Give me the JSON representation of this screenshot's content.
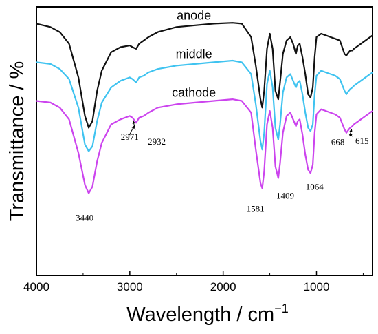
{
  "chart_data": {
    "type": "line",
    "xlabel": "Wavelength / cm",
    "xlabel_sup": "−1",
    "ylabel": "Transmittance / %",
    "xlim": [
      4000,
      400
    ],
    "x_reversed": true,
    "xticks": [
      4000,
      3000,
      2000,
      1000
    ],
    "y_ticks_shown": false,
    "grid": false,
    "legend": "none",
    "series": [
      {
        "name": "anode",
        "color": "#111111",
        "points": [
          [
            4000,
            80
          ],
          [
            3850,
            78
          ],
          [
            3750,
            75
          ],
          [
            3650,
            68
          ],
          [
            3550,
            48
          ],
          [
            3480,
            25
          ],
          [
            3440,
            18
          ],
          [
            3400,
            22
          ],
          [
            3350,
            40
          ],
          [
            3300,
            52
          ],
          [
            3200,
            63
          ],
          [
            3100,
            66
          ],
          [
            3000,
            67
          ],
          [
            2971,
            66
          ],
          [
            2932,
            65
          ],
          [
            2900,
            68
          ],
          [
            2850,
            70
          ],
          [
            2800,
            72
          ],
          [
            2700,
            75
          ],
          [
            2500,
            78
          ],
          [
            2300,
            79
          ],
          [
            2100,
            80
          ],
          [
            1900,
            80.5
          ],
          [
            1800,
            80
          ],
          [
            1700,
            72
          ],
          [
            1650,
            55
          ],
          [
            1600,
            35
          ],
          [
            1581,
            30
          ],
          [
            1560,
            40
          ],
          [
            1530,
            65
          ],
          [
            1500,
            74
          ],
          [
            1470,
            65
          ],
          [
            1440,
            40
          ],
          [
            1409,
            35
          ],
          [
            1390,
            45
          ],
          [
            1360,
            62
          ],
          [
            1320,
            70
          ],
          [
            1280,
            72
          ],
          [
            1250,
            68
          ],
          [
            1220,
            62
          ],
          [
            1200,
            67
          ],
          [
            1180,
            68
          ],
          [
            1150,
            60
          ],
          [
            1120,
            50
          ],
          [
            1090,
            38
          ],
          [
            1064,
            36
          ],
          [
            1040,
            42
          ],
          [
            1020,
            60
          ],
          [
            1000,
            72
          ],
          [
            950,
            74
          ],
          [
            900,
            73
          ],
          [
            850,
            72
          ],
          [
            800,
            71
          ],
          [
            750,
            70
          ],
          [
            700,
            62
          ],
          [
            680,
            61
          ],
          [
            668,
            62
          ],
          [
            640,
            64
          ],
          [
            615,
            64
          ],
          [
            600,
            65
          ],
          [
            550,
            67
          ],
          [
            500,
            69
          ],
          [
            450,
            71
          ],
          [
            400,
            73
          ]
        ]
      },
      {
        "name": "middle",
        "color": "#3FC3F0",
        "points": [
          [
            4000,
            57
          ],
          [
            3850,
            56
          ],
          [
            3750,
            53
          ],
          [
            3650,
            47
          ],
          [
            3550,
            30
          ],
          [
            3480,
            8
          ],
          [
            3440,
            4
          ],
          [
            3400,
            7
          ],
          [
            3350,
            22
          ],
          [
            3300,
            33
          ],
          [
            3200,
            42
          ],
          [
            3100,
            46
          ],
          [
            3000,
            48
          ],
          [
            2971,
            47
          ],
          [
            2932,
            45
          ],
          [
            2900,
            48
          ],
          [
            2850,
            49
          ],
          [
            2800,
            51
          ],
          [
            2700,
            53
          ],
          [
            2500,
            55
          ],
          [
            2300,
            56
          ],
          [
            2100,
            57
          ],
          [
            1900,
            58
          ],
          [
            1800,
            57
          ],
          [
            1700,
            50
          ],
          [
            1650,
            32
          ],
          [
            1600,
            10
          ],
          [
            1581,
            5
          ],
          [
            1560,
            15
          ],
          [
            1530,
            44
          ],
          [
            1500,
            52
          ],
          [
            1470,
            42
          ],
          [
            1440,
            18
          ],
          [
            1409,
            11
          ],
          [
            1390,
            20
          ],
          [
            1360,
            39
          ],
          [
            1320,
            48
          ],
          [
            1280,
            50
          ],
          [
            1250,
            46
          ],
          [
            1220,
            42
          ],
          [
            1200,
            45
          ],
          [
            1180,
            46
          ],
          [
            1150,
            38
          ],
          [
            1120,
            27
          ],
          [
            1090,
            18
          ],
          [
            1064,
            16
          ],
          [
            1040,
            20
          ],
          [
            1020,
            38
          ],
          [
            1000,
            49
          ],
          [
            950,
            52
          ],
          [
            900,
            51
          ],
          [
            850,
            50
          ],
          [
            800,
            49
          ],
          [
            750,
            47
          ],
          [
            700,
            40
          ],
          [
            680,
            38
          ],
          [
            668,
            39
          ],
          [
            640,
            41
          ],
          [
            615,
            42
          ],
          [
            600,
            43
          ],
          [
            550,
            45
          ],
          [
            500,
            47
          ],
          [
            450,
            49
          ],
          [
            400,
            51
          ]
        ]
      },
      {
        "name": "cathode",
        "color": "#CC44EE",
        "points": [
          [
            4000,
            34
          ],
          [
            3850,
            33
          ],
          [
            3750,
            30
          ],
          [
            3650,
            23
          ],
          [
            3550,
            3
          ],
          [
            3480,
            -16
          ],
          [
            3440,
            -21
          ],
          [
            3400,
            -17
          ],
          [
            3350,
            -2
          ],
          [
            3300,
            9
          ],
          [
            3200,
            20
          ],
          [
            3100,
            23
          ],
          [
            3000,
            25
          ],
          [
            2971,
            24
          ],
          [
            2932,
            21
          ],
          [
            2900,
            24
          ],
          [
            2850,
            25
          ],
          [
            2800,
            27
          ],
          [
            2700,
            30
          ],
          [
            2500,
            32
          ],
          [
            2300,
            33
          ],
          [
            2100,
            34
          ],
          [
            1900,
            35
          ],
          [
            1800,
            34
          ],
          [
            1700,
            27
          ],
          [
            1650,
            5
          ],
          [
            1600,
            -15
          ],
          [
            1581,
            -18
          ],
          [
            1560,
            -8
          ],
          [
            1530,
            20
          ],
          [
            1500,
            28
          ],
          [
            1470,
            18
          ],
          [
            1440,
            -5
          ],
          [
            1409,
            -12
          ],
          [
            1390,
            -3
          ],
          [
            1360,
            15
          ],
          [
            1320,
            25
          ],
          [
            1280,
            27
          ],
          [
            1250,
            23
          ],
          [
            1220,
            19
          ],
          [
            1200,
            22
          ],
          [
            1180,
            23
          ],
          [
            1150,
            14
          ],
          [
            1120,
            2
          ],
          [
            1090,
            -7
          ],
          [
            1064,
            -9
          ],
          [
            1040,
            -4
          ],
          [
            1020,
            15
          ],
          [
            1000,
            26
          ],
          [
            950,
            29
          ],
          [
            900,
            28
          ],
          [
            850,
            27
          ],
          [
            800,
            26
          ],
          [
            750,
            24
          ],
          [
            700,
            17
          ],
          [
            680,
            15
          ],
          [
            668,
            16
          ],
          [
            640,
            18
          ],
          [
            615,
            19
          ],
          [
            600,
            20
          ],
          [
            550,
            22
          ],
          [
            500,
            24
          ],
          [
            450,
            26
          ],
          [
            400,
            28
          ]
        ]
      }
    ],
    "peak_annotations": [
      {
        "label": "3440",
        "x": 3440
      },
      {
        "label": "2971",
        "x": 2971
      },
      {
        "label": "2932",
        "x": 2932
      },
      {
        "label": "1581",
        "x": 1581
      },
      {
        "label": "1409",
        "x": 1409
      },
      {
        "label": "1064",
        "x": 1064
      },
      {
        "label": "668",
        "x": 668
      },
      {
        "label": "615",
        "x": 615
      }
    ]
  }
}
